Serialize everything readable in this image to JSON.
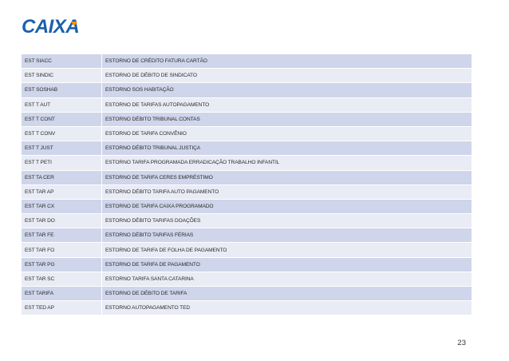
{
  "brand": {
    "logo_text": "CAIXA",
    "primary_color": "#1c60ab",
    "accent_color": "#f39200"
  },
  "table": {
    "rows": [
      {
        "code": "EST SIACC",
        "description": "ESTORNO DE CRÉDITO FATURA CARTÃO"
      },
      {
        "code": "EST SINDIC",
        "description": "ESTORNO DE DÉBITO DE SINDICATO"
      },
      {
        "code": "EST SOSHAB",
        "description": "ESTORNO SOS HABITAÇÃO"
      },
      {
        "code": "EST T AUT",
        "description": "ESTORNO DE TARIFAS AUTOPAGAMENTO"
      },
      {
        "code": "EST T CONT",
        "description": "ESTORNO DÉBITO TRIBUNAL CONTAS"
      },
      {
        "code": "EST T CONV",
        "description": "ESTORNO DE TARIFA CONVÊNIO"
      },
      {
        "code": "EST T JUST",
        "description": "ESTORNO DÉBITO TRIBUNAL JUSTIÇA"
      },
      {
        "code": "EST T PETI",
        "description": "ESTORNO TARIFA PROGRAMADA ERRADICAÇÃO TRABALHO INFANTIL"
      },
      {
        "code": "EST TA CER",
        "description": "ESTORNO DE TARIFA CERES EMPRÉSTIMO"
      },
      {
        "code": "EST TAR AP",
        "description": "ESTORNO DÉBITO TARIFA AUTO PAGAMENTO"
      },
      {
        "code": "EST TAR CX",
        "description": "ESTORNO DE TARIFA CAIXA PROGRAMADO"
      },
      {
        "code": "EST TAR DO",
        "description": "ESTORNO DÉBITO TARIFAS DOAÇÕES"
      },
      {
        "code": "EST TAR FE",
        "description": "ESTORNO DÉBITO TARIFAS FÉRIAS"
      },
      {
        "code": "EST TAR FO",
        "description": "ESTORNO DE TARIFA DE FOLHA DE PAGAMENTO"
      },
      {
        "code": "EST TAR PG",
        "description": "ESTORNO DE TARIFA DE PAGAMENTO"
      },
      {
        "code": "EST TAR SC",
        "description": "ESTORNO TARIFA SANTA CATARINA"
      },
      {
        "code": "EST TARIFA",
        "description": "ESTORNO DE DÉBITO DE TARIFA"
      },
      {
        "code": "EST TED AP",
        "description": "ESTORNO AUTOPAGAMENTO TED"
      }
    ]
  },
  "footer": {
    "page_number": "23"
  }
}
